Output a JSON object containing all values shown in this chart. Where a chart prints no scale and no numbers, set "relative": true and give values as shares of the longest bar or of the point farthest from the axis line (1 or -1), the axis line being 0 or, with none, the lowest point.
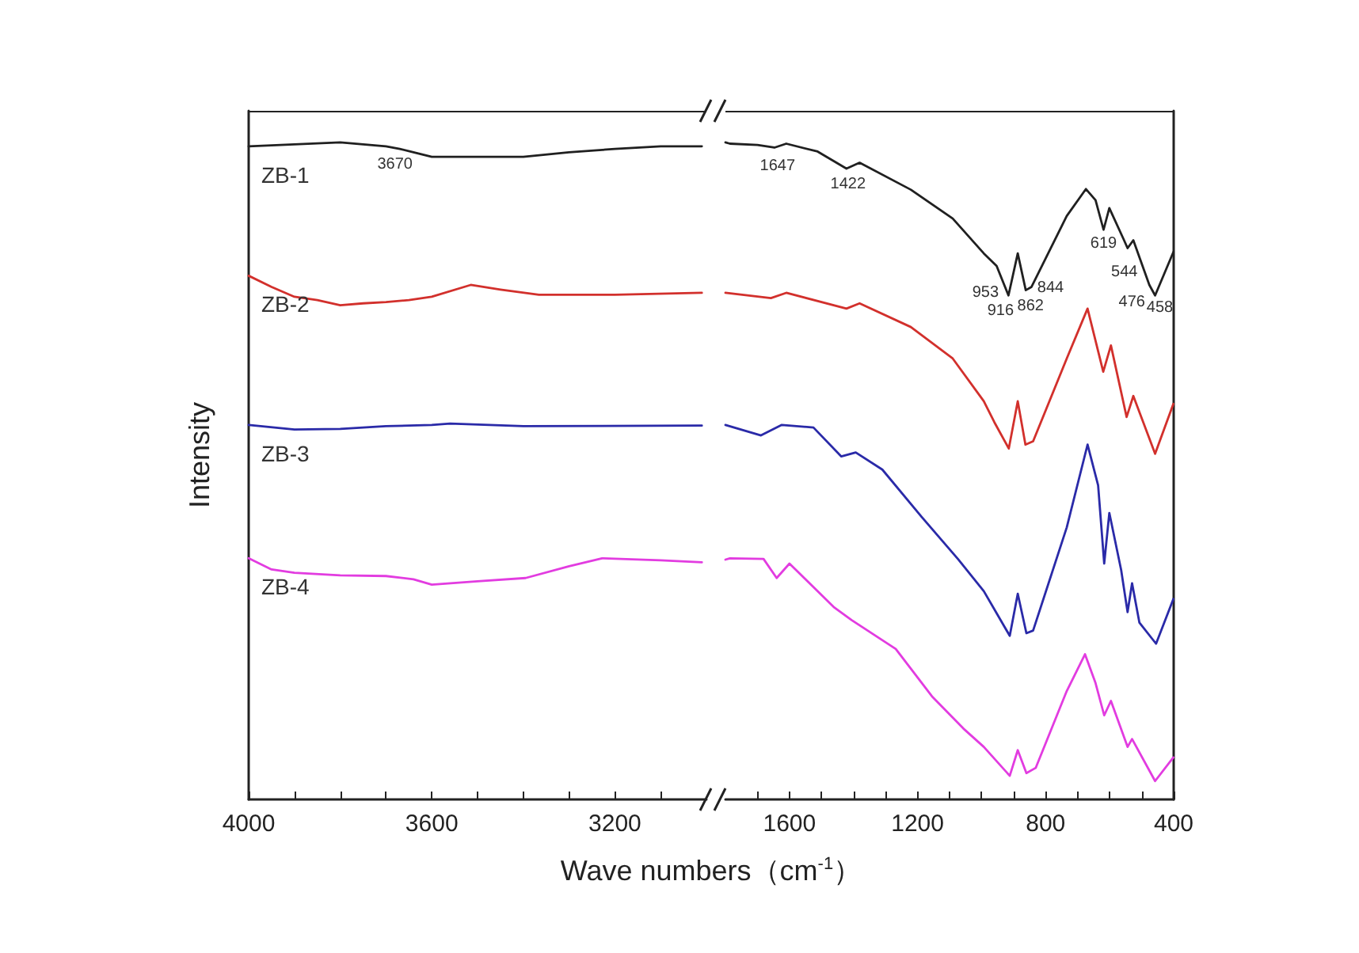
{
  "chart_data": [
    {
      "type": "line",
      "relative": true,
      "ylabel": "Intensity",
      "xlabel": "Wave numbers（cm$^{-1}$）",
      "xlim": [
        4000,
        3000
      ],
      "xticks": [
        4000,
        {
          "value": 3900,
          "label": null
        },
        {
          "value": 3800,
          "label": null
        },
        {
          "value": 3700,
          "label": null
        },
        3600,
        {
          "value": 3500,
          "label": null
        },
        {
          "value": 3400,
          "label": null
        },
        {
          "value": 3300,
          "label": null
        },
        3200,
        {
          "value": 3100,
          "label": null
        }
      ],
      "annotations": [
        {
          "text": "3670",
          "x": 3670,
          "y": 0.99
        }
      ],
      "series": [
        {
          "name": "ZB-1",
          "color": "#202020",
          "x": [
            4000,
            3800,
            3700,
            3670,
            3640,
            3600,
            3500,
            3400,
            3300,
            3200,
            3100,
            3010
          ],
          "values": [
            0.994,
            1.0,
            0.994,
            0.99,
            0.985,
            0.978,
            0.978,
            0.978,
            0.985,
            0.99,
            0.994,
            0.994
          ]
        },
        {
          "name": "ZB-2",
          "color": "#d2302c",
          "x": [
            4000,
            3950,
            3900,
            3850,
            3800,
            3750,
            3700,
            3650,
            3600,
            3515,
            3450,
            3366,
            3200,
            3010
          ],
          "values": [
            0.797,
            0.78,
            0.765,
            0.76,
            0.752,
            0.755,
            0.757,
            0.76,
            0.765,
            0.783,
            0.776,
            0.768,
            0.768,
            0.771
          ]
        },
        {
          "name": "ZB-3",
          "color": "#2a2aa8",
          "x": [
            4000,
            3900,
            3800,
            3700,
            3600,
            3560,
            3400,
            3010
          ],
          "values": [
            0.57,
            0.563,
            0.564,
            0.568,
            0.57,
            0.572,
            0.568,
            0.569
          ]
        },
        {
          "name": "ZB-4",
          "color": "#e23ce0",
          "x": [
            4000,
            3950,
            3900,
            3800,
            3700,
            3640,
            3600,
            3500,
            3395,
            3300,
            3228,
            3100,
            3010
          ],
          "values": [
            0.367,
            0.35,
            0.345,
            0.341,
            0.34,
            0.335,
            0.327,
            0.332,
            0.337,
            0.355,
            0.367,
            0.364,
            0.361
          ]
        }
      ]
    },
    {
      "type": "line",
      "relative": true,
      "xlim": [
        1800,
        400
      ],
      "xticks": [
        {
          "value": 1700,
          "label": null
        },
        1600,
        {
          "value": 1500,
          "label": null
        },
        {
          "value": 1400,
          "label": null
        },
        {
          "value": 1300,
          "label": null
        },
        1200,
        {
          "value": 1100,
          "label": null
        },
        {
          "value": 1000,
          "label": null
        },
        {
          "value": 900,
          "label": null
        },
        800,
        {
          "value": 700,
          "label": null
        },
        {
          "value": 600,
          "label": null
        },
        {
          "value": 500,
          "label": null
        },
        400
      ],
      "annotations": [
        {
          "text": "1647",
          "x": 1647,
          "y": 0.992
        },
        {
          "text": "1422",
          "x": 1422,
          "y": 0.96
        },
        {
          "text": "953",
          "x": 953,
          "y": 0.812
        },
        {
          "text": "916",
          "x": 916,
          "y": 0.767
        },
        {
          "text": "862",
          "x": 862,
          "y": 0.775
        },
        {
          "text": "844",
          "x": 844,
          "y": 0.78
        },
        {
          "text": "619",
          "x": 619,
          "y": 0.867
        },
        {
          "text": "544",
          "x": 544,
          "y": 0.839
        },
        {
          "text": "476",
          "x": 476,
          "y": 0.783
        },
        {
          "text": "458",
          "x": 458,
          "y": 0.767
        }
      ],
      "series": [
        {
          "color": "#202020",
          "x": [
            1800,
            1786,
            1700,
            1647,
            1610,
            1512,
            1422,
            1381,
            1221,
            1090,
            993,
            953,
            916,
            887,
            862,
            844,
            734,
            674,
            644,
            619,
            601,
            555,
            544,
            526,
            476,
            458,
            401
          ],
          "values": [
            1.0,
            0.998,
            0.996,
            0.992,
            0.998,
            0.986,
            0.96,
            0.969,
            0.928,
            0.884,
            0.831,
            0.812,
            0.767,
            0.831,
            0.775,
            0.78,
            0.888,
            0.929,
            0.912,
            0.867,
            0.9,
            0.851,
            0.839,
            0.851,
            0.783,
            0.767,
            0.833
          ]
        },
        {
          "color": "#d2302c",
          "x": [
            1800,
            1658,
            1610,
            1422,
            1381,
            1221,
            1090,
            993,
            960,
            915,
            887,
            863,
            839,
            734,
            669,
            620,
            596,
            547,
            526,
            458,
            401
          ],
          "values": [
            0.771,
            0.763,
            0.771,
            0.747,
            0.755,
            0.719,
            0.671,
            0.606,
            0.574,
            0.534,
            0.606,
            0.54,
            0.545,
            0.671,
            0.747,
            0.651,
            0.691,
            0.582,
            0.614,
            0.526,
            0.602
          ]
        },
        {
          "color": "#2a2aa8",
          "x": [
            1800,
            1689,
            1624,
            1525,
            1438,
            1393,
            1310,
            1187,
            1074,
            993,
            912,
            887,
            860,
            839,
            734,
            669,
            636,
            617,
            601,
            564,
            544,
            530,
            507,
            455,
            401
          ],
          "values": [
            0.57,
            0.554,
            0.57,
            0.566,
            0.522,
            0.528,
            0.502,
            0.43,
            0.366,
            0.317,
            0.249,
            0.313,
            0.253,
            0.257,
            0.414,
            0.54,
            0.478,
            0.359,
            0.436,
            0.349,
            0.285,
            0.329,
            0.269,
            0.237,
            0.305
          ]
        },
        {
          "color": "#e23ce0",
          "x": [
            1800,
            1786,
            1681,
            1640,
            1600,
            1462,
            1406,
            1268,
            1155,
            1057,
            993,
            912,
            887,
            860,
            831,
            734,
            677,
            644,
            617,
            596,
            544,
            530,
            458,
            401
          ],
          "values": [
            0.365,
            0.367,
            0.366,
            0.337,
            0.359,
            0.293,
            0.273,
            0.229,
            0.157,
            0.108,
            0.08,
            0.036,
            0.075,
            0.04,
            0.048,
            0.165,
            0.221,
            0.177,
            0.128,
            0.15,
            0.08,
            0.092,
            0.028,
            0.064
          ]
        }
      ]
    }
  ]
}
